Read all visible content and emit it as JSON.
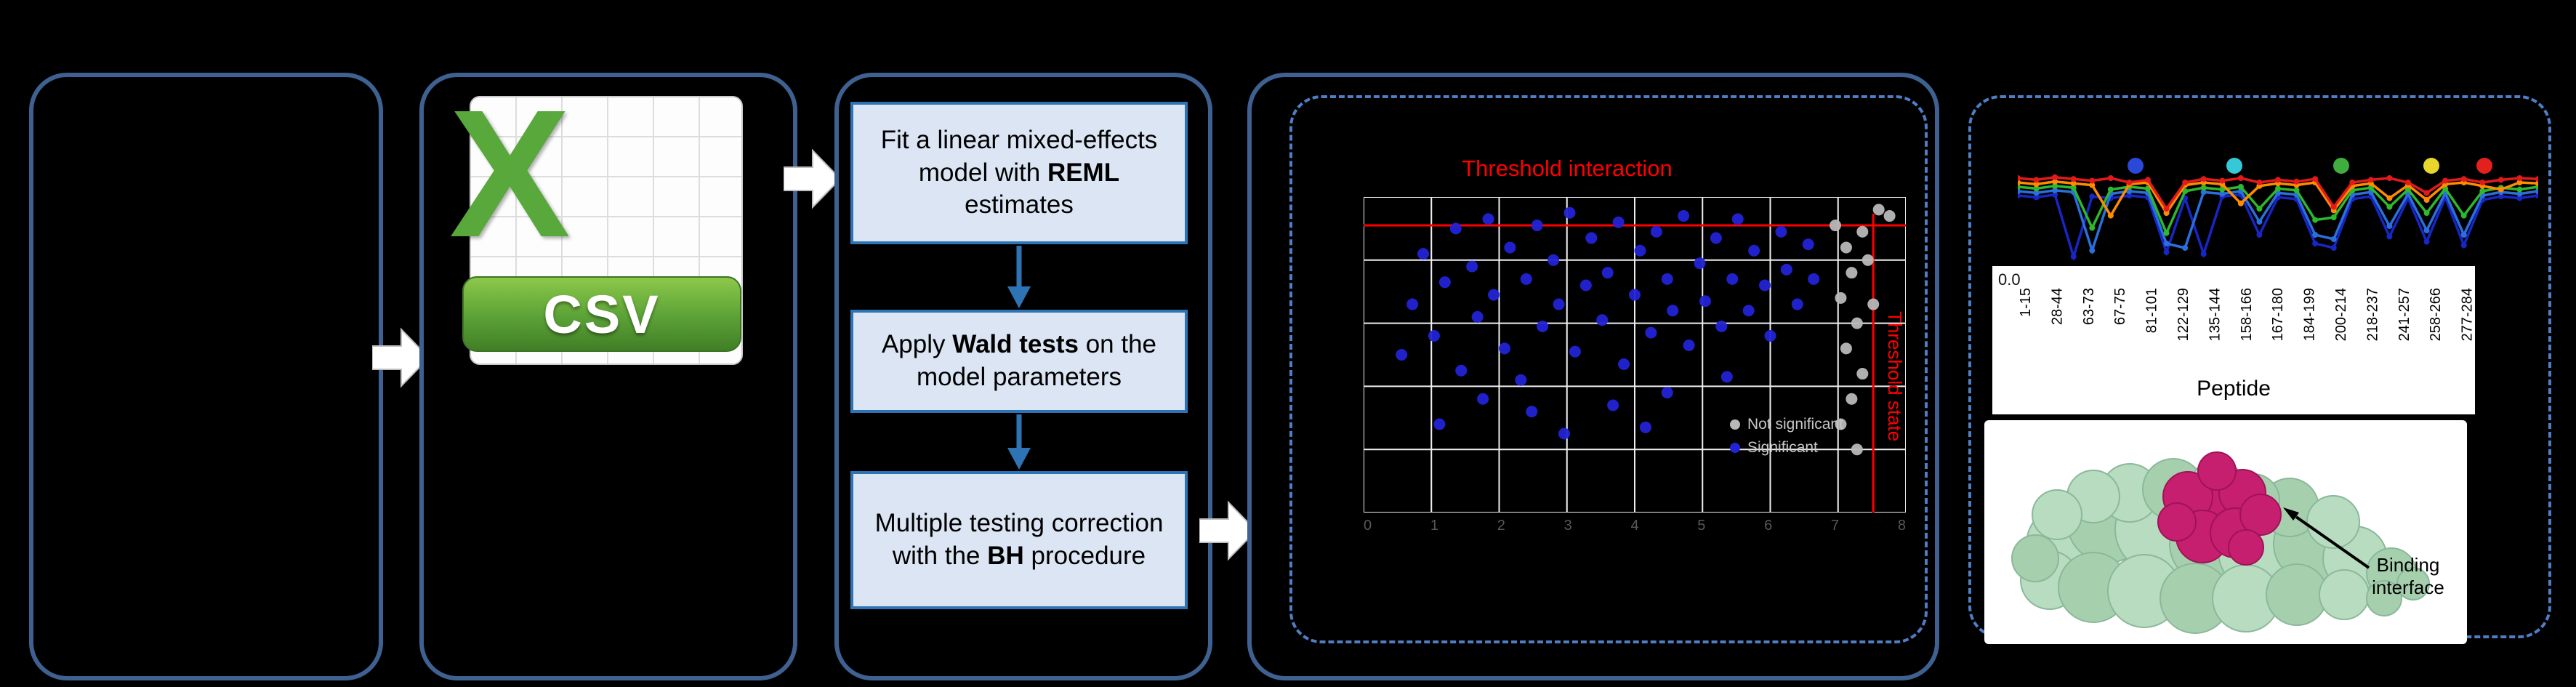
{
  "figure": {
    "csv_icon": {
      "letter": "X",
      "label": "CSV"
    },
    "steps": {
      "box1": {
        "pre": "Fit a linear mixed-effects model with ",
        "bold": "REML",
        "post": " estimates"
      },
      "box2": {
        "pre": "Apply ",
        "bold": "Wald tests",
        "post": " on the model parameters"
      },
      "box3": {
        "pre": "Multiple testing correction\nwith the ",
        "bold": "BH",
        "post": " procedure"
      }
    },
    "protein_annotation": {
      "line1": "Binding",
      "line2": "interface"
    }
  },
  "chart_data": [
    {
      "type": "scatter",
      "title": "Threshold interaction",
      "right_label": "Threshold state",
      "x_ticks": [
        "0",
        "1",
        "2",
        "3",
        "4",
        "5",
        "6",
        "7",
        "8"
      ],
      "threshold_h_pct": 9,
      "threshold_v_pct": 94,
      "grid": true,
      "legend": [
        {
          "label": "Not significant",
          "color": "#b8b8b8"
        },
        {
          "label": "Significant",
          "color": "#2323d6"
        }
      ],
      "series": [
        {
          "name": "significant",
          "color": "#2323d6",
          "points": [
            [
              7,
              50
            ],
            [
              9,
              34
            ],
            [
              11,
              18
            ],
            [
              13,
              44
            ],
            [
              15,
              27
            ],
            [
              17,
              10
            ],
            [
              18,
              55
            ],
            [
              20,
              22
            ],
            [
              21,
              38
            ],
            [
              23,
              7
            ],
            [
              24,
              31
            ],
            [
              26,
              48
            ],
            [
              27,
              16
            ],
            [
              29,
              58
            ],
            [
              30,
              26
            ],
            [
              32,
              9
            ],
            [
              33,
              41
            ],
            [
              35,
              20
            ],
            [
              36,
              34
            ],
            [
              38,
              5
            ],
            [
              39,
              49
            ],
            [
              41,
              28
            ],
            [
              42,
              13
            ],
            [
              44,
              39
            ],
            [
              45,
              24
            ],
            [
              47,
              8
            ],
            [
              48,
              53
            ],
            [
              50,
              31
            ],
            [
              51,
              17
            ],
            [
              53,
              43
            ],
            [
              54,
              11
            ],
            [
              56,
              26
            ],
            [
              57,
              36
            ],
            [
              59,
              6
            ],
            [
              60,
              47
            ],
            [
              62,
              21
            ],
            [
              63,
              33
            ],
            [
              65,
              13
            ],
            [
              66,
              41
            ],
            [
              68,
              26
            ],
            [
              69,
              7
            ],
            [
              71,
              36
            ],
            [
              72,
              17
            ],
            [
              74,
              28
            ],
            [
              75,
              44
            ],
            [
              77,
              11
            ],
            [
              78,
              23
            ],
            [
              80,
              34
            ],
            [
              82,
              15
            ],
            [
              83,
              26
            ],
            [
              56,
              62
            ],
            [
              31,
              68
            ],
            [
              22,
              64
            ],
            [
              46,
              66
            ],
            [
              67,
              57
            ],
            [
              14,
              72
            ],
            [
              37,
              75
            ],
            [
              52,
              73
            ]
          ]
        },
        {
          "name": "not_significant",
          "color": "#b8b8b8",
          "points": [
            [
              87,
              9
            ],
            [
              89,
              16
            ],
            [
              90,
              24
            ],
            [
              88,
              32
            ],
            [
              91,
              40
            ],
            [
              89,
              48
            ],
            [
              92,
              56
            ],
            [
              90,
              64
            ],
            [
              88,
              72
            ],
            [
              93,
              20
            ],
            [
              94,
              34
            ],
            [
              92,
              11
            ],
            [
              95,
              4
            ],
            [
              97,
              6
            ],
            [
              91,
              80
            ]
          ]
        }
      ]
    },
    {
      "type": "line",
      "xlabel": "Peptide",
      "y_tick": "0.0",
      "categories": [
        "1-15",
        "28-44",
        "63-73",
        "67-75",
        "81-101",
        "122-129",
        "135-144",
        "158-166",
        "167-180",
        "184-199",
        "200-214",
        "218-237",
        "241-257",
        "258-266",
        "277-284"
      ],
      "legend_dot_colors": [
        "#2a49d8",
        "#35c8d8",
        "#3fae3f",
        "#e8d62c",
        "#e3211c"
      ],
      "series": [
        {
          "name": "state-navy",
          "color": "#1726c4",
          "values": [
            0.75,
            0.73,
            0.76,
            0.05,
            0.74,
            0.72,
            0.75,
            0.73,
            0.1,
            0.72,
            0.08,
            0.74,
            0.76,
            0.3,
            0.73,
            0.71,
            0.2,
            0.15,
            0.71,
            0.74,
            0.28,
            0.72,
            0.22,
            0.73,
            0.18,
            0.7,
            0.74,
            0.72,
            0.75
          ]
        },
        {
          "name": "state-blue",
          "color": "#2a6fdb",
          "values": [
            0.8,
            0.78,
            0.81,
            0.79,
            0.12,
            0.77,
            0.8,
            0.78,
            0.2,
            0.15,
            0.79,
            0.77,
            0.8,
            0.45,
            0.78,
            0.76,
            0.3,
            0.25,
            0.76,
            0.79,
            0.4,
            0.77,
            0.35,
            0.78,
            0.3,
            0.75,
            0.79,
            0.77,
            0.8
          ]
        },
        {
          "name": "state-green",
          "color": "#2db82d",
          "values": [
            0.85,
            0.83,
            0.86,
            0.84,
            0.38,
            0.82,
            0.85,
            0.83,
            0.32,
            0.8,
            0.84,
            0.82,
            0.85,
            0.6,
            0.83,
            0.81,
            0.47,
            0.5,
            0.81,
            0.84,
            0.62,
            0.82,
            0.55,
            0.83,
            0.52,
            0.8,
            0.84,
            0.82,
            0.85
          ]
        },
        {
          "name": "state-orange",
          "color": "#ff8c00",
          "values": [
            0.9,
            0.88,
            0.91,
            0.89,
            0.87,
            0.52,
            0.88,
            0.9,
            0.55,
            0.87,
            0.9,
            0.88,
            0.66,
            0.86,
            0.89,
            0.87,
            0.9,
            0.58,
            0.86,
            0.89,
            0.72,
            0.87,
            0.7,
            0.88,
            0.9,
            0.86,
            0.82,
            0.9,
            0.89
          ]
        },
        {
          "name": "state-red",
          "color": "#e31a1c",
          "values": [
            0.95,
            0.93,
            0.96,
            0.94,
            0.92,
            0.95,
            0.9,
            0.93,
            0.6,
            0.9,
            0.94,
            0.92,
            0.95,
            0.9,
            0.93,
            0.91,
            0.94,
            0.62,
            0.9,
            0.93,
            0.95,
            0.9,
            0.78,
            0.92,
            0.94,
            0.9,
            0.93,
            0.95,
            0.94
          ]
        }
      ]
    }
  ]
}
